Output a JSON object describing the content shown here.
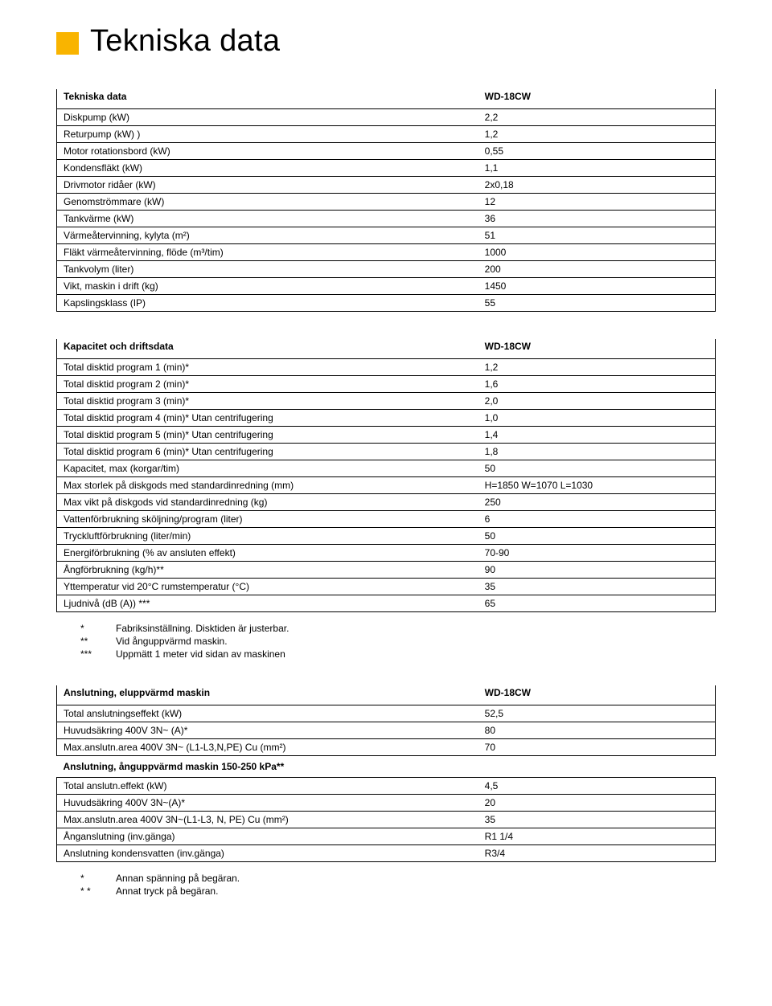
{
  "title": "Tekniska data",
  "table1": {
    "header": [
      "Tekniska data",
      "WD-18CW"
    ],
    "rows": [
      [
        "Diskpump (kW)",
        "2,2"
      ],
      [
        "Returpump (kW) )",
        "1,2"
      ],
      [
        "Motor rotationsbord (kW)",
        "0,55"
      ],
      [
        "Kondensfläkt (kW)",
        "1,1"
      ],
      [
        "Drivmotor ridåer (kW)",
        "2x0,18"
      ],
      [
        "Genomströmmare (kW)",
        "12"
      ],
      [
        "Tankvärme (kW)",
        "36"
      ],
      [
        "Värmeåtervinning, kylyta (m²)",
        "51"
      ],
      [
        "Fläkt värmeåtervinning, flöde (m³/tim)",
        "1000"
      ],
      [
        "Tankvolym (liter)",
        "200"
      ],
      [
        "Vikt, maskin i drift (kg)",
        "1450"
      ],
      [
        "Kapslingsklass (IP)",
        "55"
      ]
    ]
  },
  "table2": {
    "header": [
      "Kapacitet och driftsdata",
      "WD-18CW"
    ],
    "rows": [
      [
        "Total disktid program 1 (min)*",
        "1,2"
      ],
      [
        "Total disktid program 2 (min)*",
        "1,6"
      ],
      [
        "Total disktid program 3 (min)*",
        "2,0"
      ],
      [
        "Total disktid program 4 (min)* Utan centrifugering",
        "1,0"
      ],
      [
        "Total disktid program 5 (min)* Utan centrifugering",
        "1,4"
      ],
      [
        "Total disktid program 6 (min)* Utan centrifugering",
        "1,8"
      ],
      [
        "Kapacitet, max (korgar/tim)",
        "50"
      ],
      [
        "Max storlek på diskgods med standardinredning (mm)",
        "H=1850 W=1070 L=1030"
      ],
      [
        "Max vikt på diskgods vid standardinredning (kg)",
        "250"
      ],
      [
        "Vattenförbrukning sköljning/program (liter)",
        "6"
      ],
      [
        "Tryckluftförbrukning (liter/min)",
        "50"
      ],
      [
        "Energiförbrukning (% av ansluten effekt)",
        "70-90"
      ],
      [
        "Ångförbrukning  (kg/h)**",
        "90"
      ],
      [
        "Yttemperatur vid 20°C rumstemperatur (°C)",
        "35"
      ],
      [
        "Ljudnivå (dB (A)) ***",
        "65"
      ]
    ]
  },
  "footnotes2": [
    [
      "*",
      "Fabriksinställning. Disktiden är justerbar."
    ],
    [
      "**",
      "Vid ånguppvärmd maskin."
    ],
    [
      "***",
      "Uppmätt 1 meter vid sidan av maskinen"
    ]
  ],
  "table3": {
    "header": [
      "Anslutning, eluppvärmd maskin",
      "WD-18CW"
    ],
    "rows1": [
      [
        "Total anslutningseffekt (kW)",
        "52,5"
      ],
      [
        "Huvudsäkring 400V 3N~ (A)*",
        "80"
      ],
      [
        "Max.anslutn.area 400V 3N~ (L1-L3,N,PE) Cu (mm²)",
        "70"
      ]
    ],
    "section2": "Anslutning, ånguppvärmd maskin 150-250 kPa**",
    "rows2": [
      [
        "Total anslutn.effekt (kW)",
        "4,5"
      ],
      [
        "Huvudsäkring 400V 3N~(A)*",
        "20"
      ],
      [
        "Max.anslutn.area 400V 3N~(L1-L3, N, PE) Cu (mm²)",
        "35"
      ],
      [
        "Ånganslutning (inv.gänga)",
        "R1 1/4"
      ],
      [
        "Anslutning kondensvatten (inv.gänga)",
        "R3/4"
      ]
    ]
  },
  "footnotes3": [
    [
      "*",
      "Annan spänning på begäran."
    ],
    [
      "* *",
      "Annat tryck på begäran."
    ]
  ]
}
